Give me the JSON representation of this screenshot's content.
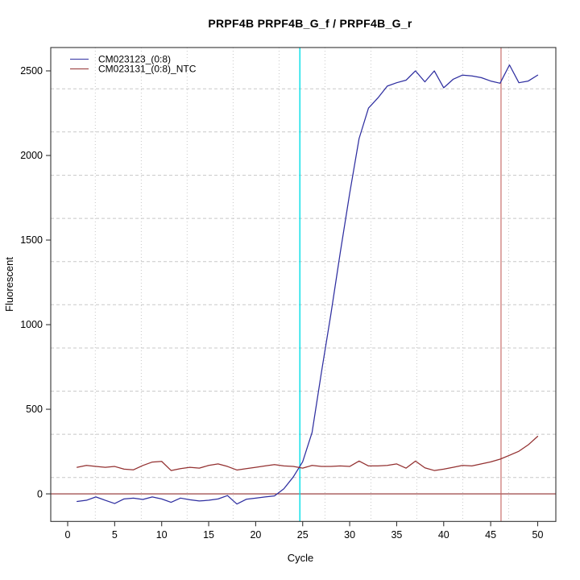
{
  "figure": {
    "background": "#ffffff",
    "border_color": "#333333",
    "text_color": "#000000"
  },
  "chart_data": {
    "type": "line",
    "title": "PRPF4B  PRPF4B_G_f / PRPF4B_G_r",
    "xlabel": "Cycle",
    "ylabel": "Fluorescent",
    "x_ticks": [
      0,
      5,
      10,
      15,
      20,
      25,
      30,
      35,
      40,
      45,
      50
    ],
    "y_ticks": [
      0,
      500,
      1000,
      1500,
      2000,
      2500
    ],
    "xlim": [
      -1.8,
      51.93
    ],
    "ylim": [
      -163,
      2638
    ],
    "grid": {
      "color": "#c8c8c8",
      "vertical_x": [
        2.94,
        7.83,
        12.71,
        17.6,
        22.49,
        27.37,
        32.26,
        37.14,
        42.03,
        46.91
      ],
      "horizontal_y": [
        97,
        352,
        607,
        862,
        1118,
        1373,
        1628,
        1883,
        2139,
        2394
      ]
    },
    "x": [
      1,
      2,
      3,
      4,
      5,
      6,
      7,
      8,
      9,
      10,
      11,
      12,
      13,
      14,
      15,
      16,
      17,
      18,
      19,
      20,
      21,
      22,
      23,
      24,
      25,
      26,
      27,
      28,
      29,
      30,
      31,
      32,
      33,
      34,
      35,
      36,
      37,
      38,
      39,
      40,
      41,
      42,
      43,
      44,
      45,
      46,
      47,
      48,
      49,
      50
    ],
    "series": [
      {
        "name": "CM023123_(0:8)",
        "color": "#2e2ea0",
        "values": [
          -45,
          -38,
          -18,
          -38,
          -57,
          -30,
          -25,
          -33,
          -18,
          -30,
          -50,
          -25,
          -35,
          -42,
          -38,
          -30,
          -10,
          -60,
          -32,
          -25,
          -18,
          -12,
          30,
          100,
          190,
          363,
          720,
          1062,
          1427,
          1776,
          2100,
          2280,
          2340,
          2410,
          2430,
          2445,
          2500,
          2435,
          2500,
          2400,
          2450,
          2475,
          2470,
          2460,
          2440,
          2427,
          2535,
          2430,
          2440,
          2475
        ]
      },
      {
        "name": "CM023131_(0:8)_NTC",
        "color": "#933030",
        "values": [
          157,
          168,
          162,
          157,
          162,
          146,
          142,
          168,
          188,
          192,
          138,
          149,
          157,
          152,
          168,
          177,
          162,
          141,
          149,
          157,
          165,
          173,
          165,
          162,
          152,
          168,
          162,
          162,
          165,
          162,
          194,
          165,
          165,
          168,
          177,
          152,
          194,
          154,
          138,
          146,
          157,
          168,
          165,
          177,
          189,
          205,
          228,
          252,
          290,
          340
        ]
      }
    ],
    "reference_lines": {
      "threshold": {
        "orientation": "horizontal",
        "y": 0,
        "color": "#8f2f2f"
      },
      "ct_marker": {
        "orientation": "vertical",
        "x": 24.7,
        "color": "#00dfe6"
      },
      "cycle_marker": {
        "orientation": "vertical",
        "x": 46.1,
        "color": "#c4615e"
      }
    },
    "legend": {
      "position": "top-left"
    }
  }
}
